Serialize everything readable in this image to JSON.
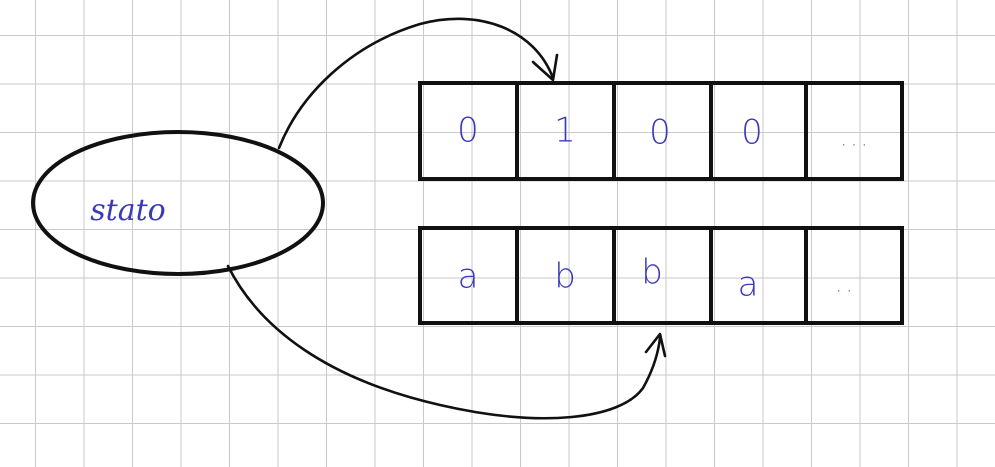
{
  "colors": {
    "ink": "#111111",
    "handwriting": "#3a3ab8",
    "grid": "#c9c9c9"
  },
  "state": {
    "label": "stato"
  },
  "tape_top": {
    "cells": [
      "0",
      "1",
      "0",
      "0",
      "..."
    ]
  },
  "tape_bottom": {
    "cells": [
      "a",
      "b",
      "b",
      "a",
      ".."
    ]
  }
}
